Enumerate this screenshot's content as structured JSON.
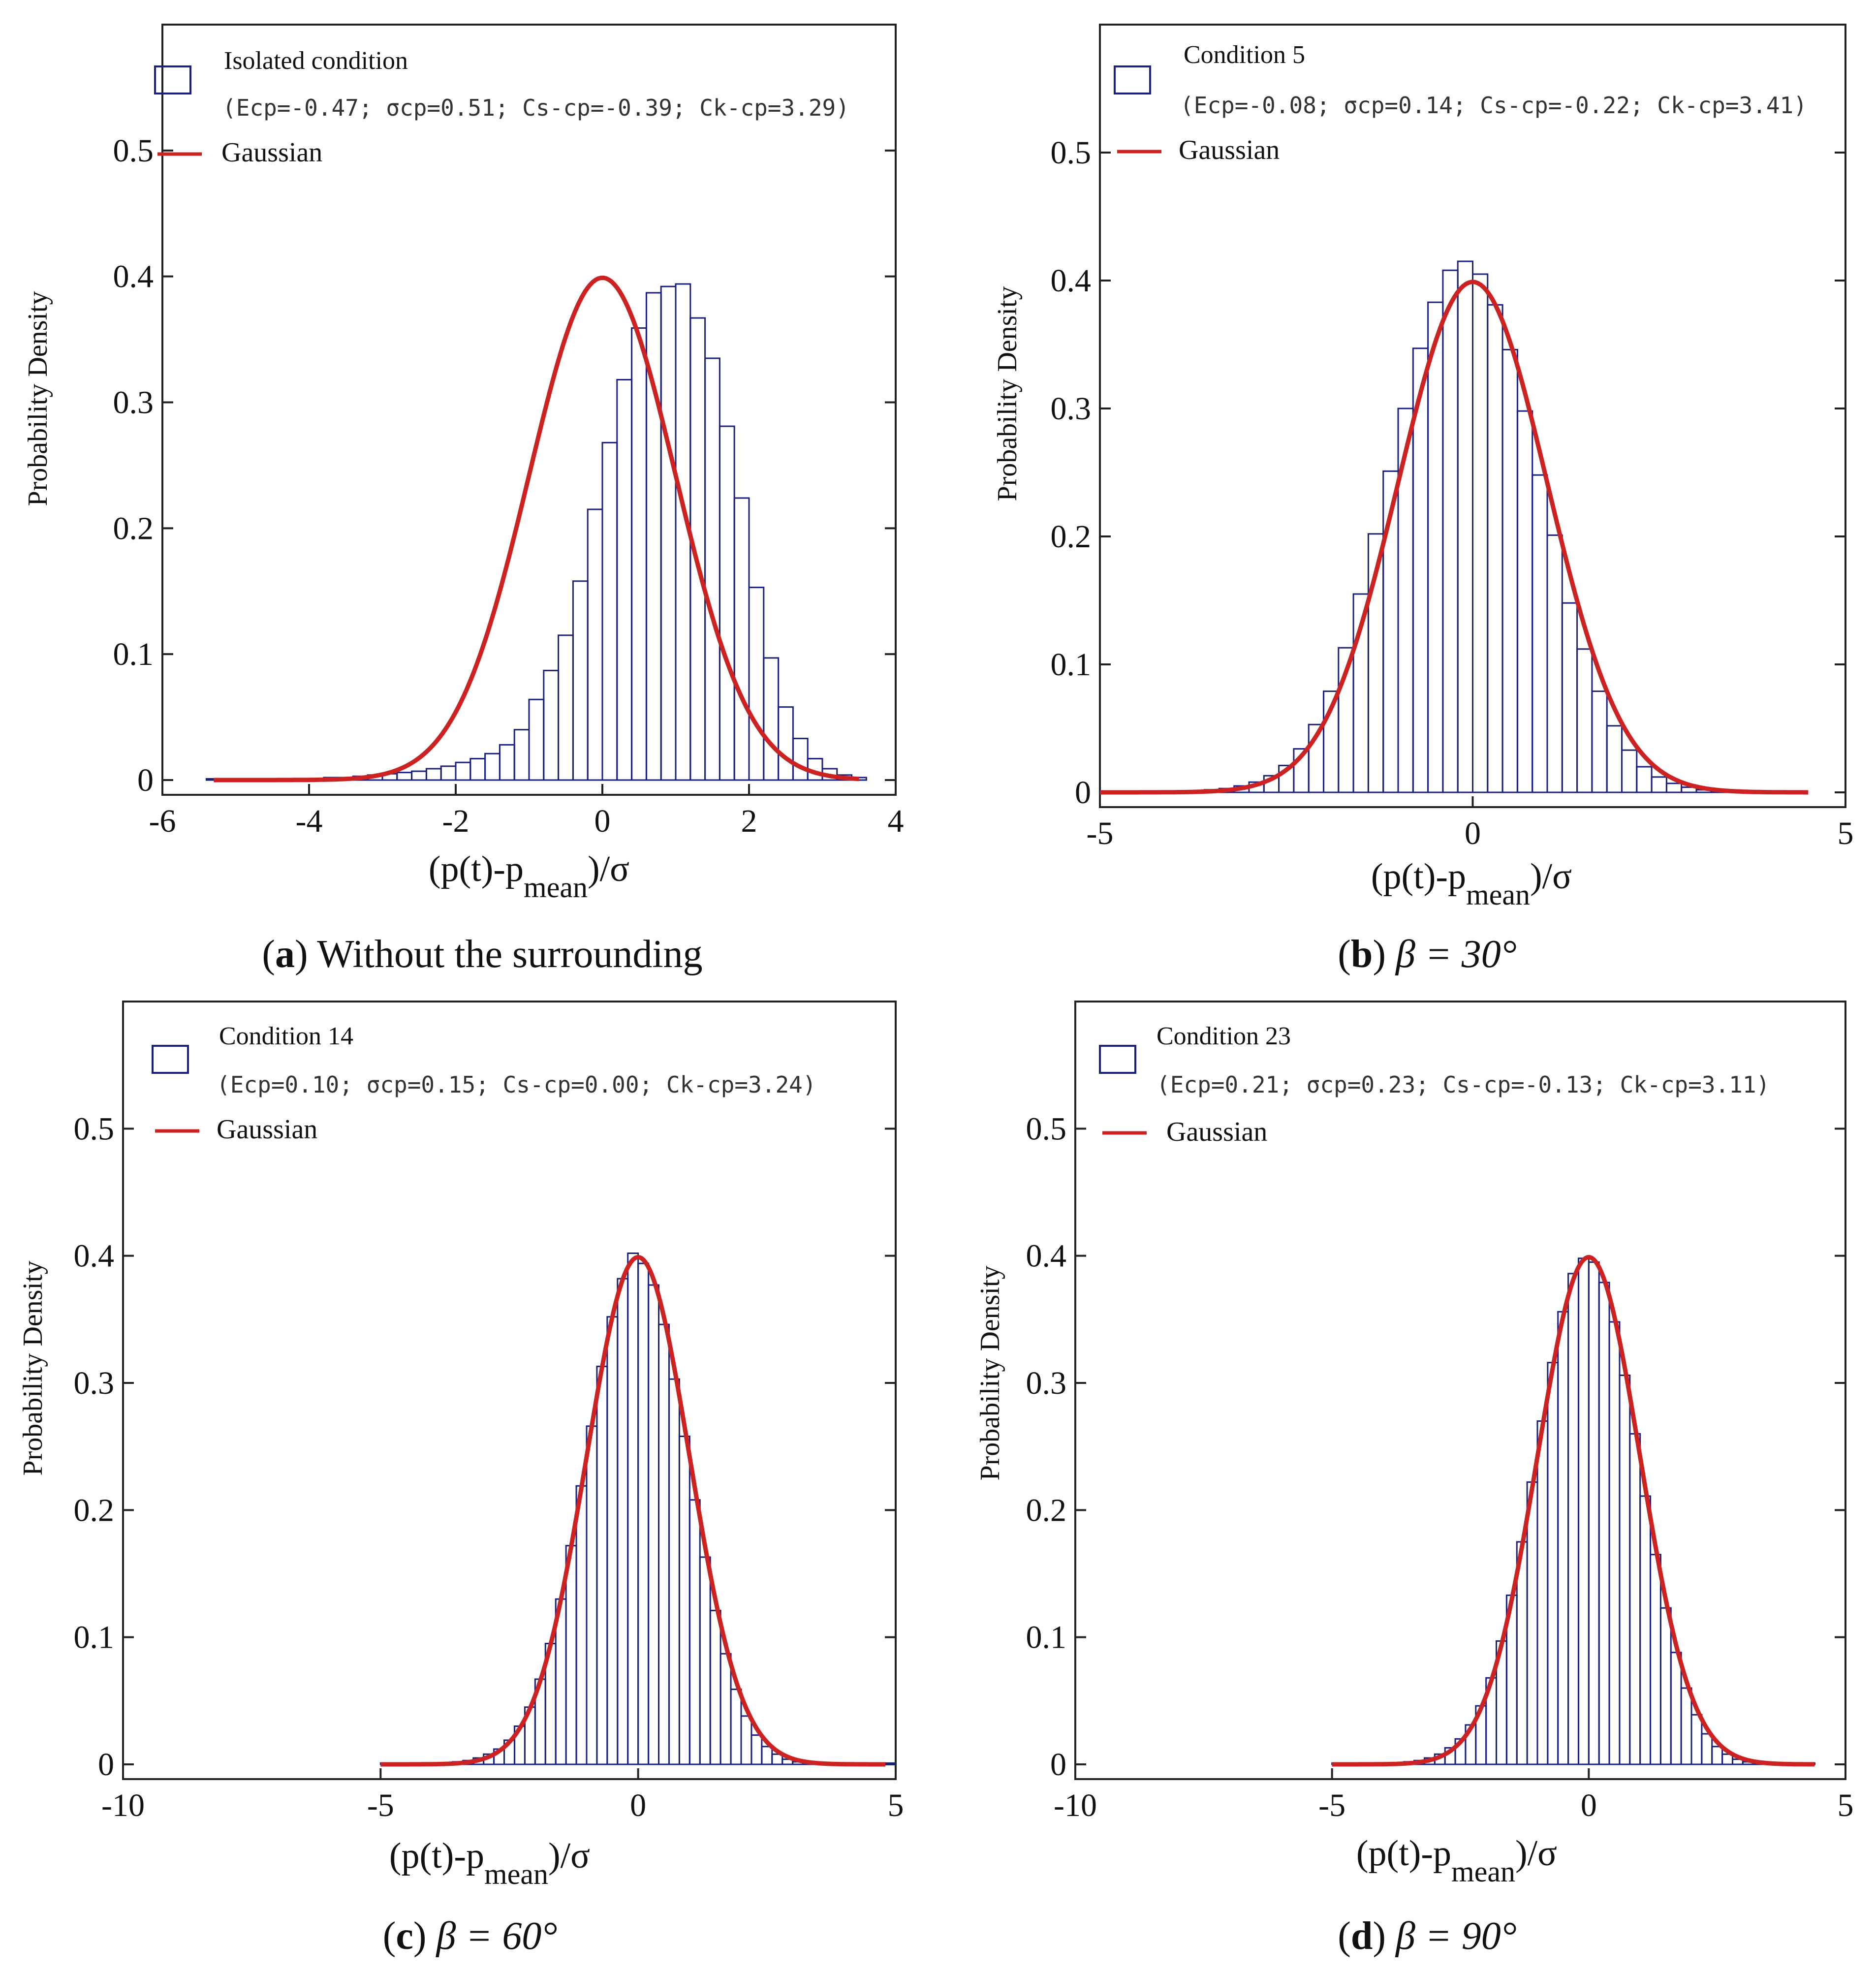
{
  "figure_captions": [
    {
      "letter": "a",
      "text": "Without the surrounding"
    },
    {
      "letter": "b",
      "text": "β = 30°"
    },
    {
      "letter": "c",
      "text": "β = 60°"
    },
    {
      "letter": "d",
      "text": "β = 90°"
    }
  ],
  "colors": {
    "bars": "#1a2080",
    "gaussian": "#cc2222",
    "axes": "#222222"
  },
  "chart_data": [
    {
      "type": "bar",
      "panel": "a",
      "xlabel": "(p(t)-p_mean)/σ",
      "ylabel": "Probability Density",
      "xlim": [
        -6,
        4
      ],
      "ylim": [
        0,
        0.6
      ],
      "xticks": [
        -6,
        -4,
        -2,
        0,
        2,
        4
      ],
      "yticks": [
        0,
        0.1,
        0.2,
        0.3,
        0.4,
        0.5
      ],
      "legend": {
        "title": "Isolated condition",
        "stats": "(Ecp=-0.47; σcp=0.51; Cs-cp=-0.39; Ck-cp=3.29)",
        "gaussian": "Gaussian"
      },
      "bin_width": 0.2,
      "bin_start": -5.4,
      "counts": [
        0.001,
        0.001,
        0.001,
        0.001,
        0.001,
        0.001,
        0.001,
        0.001,
        0.002,
        0.002,
        0.003,
        0.004,
        0.005,
        0.006,
        0.007,
        0.009,
        0.011,
        0.014,
        0.017,
        0.021,
        0.028,
        0.04,
        0.064,
        0.087,
        0.115,
        0.158,
        0.215,
        0.268,
        0.318,
        0.359,
        0.387,
        0.392,
        0.394,
        0.367,
        0.335,
        0.281,
        0.224,
        0.153,
        0.097,
        0.058,
        0.033,
        0.017,
        0.009,
        0.004,
        0.002
      ],
      "gaussian_range": [
        -5.3,
        3.5
      ]
    },
    {
      "type": "bar",
      "panel": "b",
      "xlabel": "(p(t)-p_mean)/σ",
      "ylabel": "Probability Density",
      "xlim": [
        -5,
        5
      ],
      "ylim": [
        0,
        0.6
      ],
      "xticks": [
        -5,
        0,
        5
      ],
      "yticks": [
        0,
        0.1,
        0.2,
        0.3,
        0.4,
        0.5
      ],
      "legend": {
        "title": "Condition 5",
        "stats": "(Ecp=-0.08; σcp=0.14; Cs-cp=-0.22; Ck-cp=3.41)",
        "gaussian": "Gaussian"
      },
      "bin_width": 0.2,
      "bin_start": -5.0,
      "counts": [
        0.001,
        0.001,
        0.001,
        0.001,
        0.001,
        0.001,
        0.001,
        0.002,
        0.003,
        0.005,
        0.008,
        0.013,
        0.021,
        0.034,
        0.053,
        0.079,
        0.113,
        0.155,
        0.202,
        0.251,
        0.3,
        0.347,
        0.383,
        0.408,
        0.415,
        0.405,
        0.381,
        0.346,
        0.298,
        0.248,
        0.201,
        0.148,
        0.112,
        0.079,
        0.052,
        0.033,
        0.02,
        0.012,
        0.007,
        0.004,
        0.002,
        0.001,
        0.001,
        0.001,
        0.001,
        0.001
      ],
      "gaussian_range": [
        -5.0,
        4.5
      ]
    },
    {
      "type": "bar",
      "panel": "c",
      "xlabel": "(p(t)-p_mean)/σ",
      "ylabel": "Probability Density",
      "xlim": [
        -10,
        5
      ],
      "ylim": [
        0,
        0.6
      ],
      "xticks": [
        -10,
        -5,
        0,
        5
      ],
      "yticks": [
        0,
        0.1,
        0.2,
        0.3,
        0.4,
        0.5
      ],
      "legend": {
        "title": "Condition 14",
        "stats": "(Ecp=0.10; σcp=0.15; Cs-cp=0.00; Ck-cp=3.24)",
        "gaussian": "Gaussian"
      },
      "bin_width": 0.2,
      "bin_start": -5.0,
      "counts": [
        0.001,
        0.001,
        0.001,
        0.001,
        0.001,
        0.001,
        0.001,
        0.002,
        0.003,
        0.005,
        0.008,
        0.012,
        0.019,
        0.03,
        0.045,
        0.067,
        0.095,
        0.13,
        0.172,
        0.219,
        0.266,
        0.313,
        0.352,
        0.382,
        0.402,
        0.394,
        0.377,
        0.346,
        0.303,
        0.258,
        0.208,
        0.163,
        0.121,
        0.087,
        0.059,
        0.038,
        0.023,
        0.014,
        0.008,
        0.004,
        0.002,
        0.001,
        0.001,
        0.001,
        0.001,
        0.001,
        0.001,
        0.001,
        0.001,
        0.001
      ],
      "gaussian_range": [
        -5.0,
        4.8
      ]
    },
    {
      "type": "bar",
      "panel": "d",
      "xlabel": "(p(t)-p_mean)/σ",
      "ylabel": "Probability Density",
      "xlim": [
        -10,
        5
      ],
      "ylim": [
        0,
        0.6
      ],
      "xticks": [
        -10,
        -5,
        0,
        5
      ],
      "yticks": [
        0,
        0.1,
        0.2,
        0.3,
        0.4,
        0.5
      ],
      "legend": {
        "title": "Condition 23",
        "stats": "(Ecp=0.21; σcp=0.23; Cs-cp=-0.13; Ck-cp=3.11)",
        "gaussian": "Gaussian"
      },
      "bin_width": 0.2,
      "bin_start": -5.0,
      "counts": [
        0.001,
        0.001,
        0.001,
        0.001,
        0.001,
        0.001,
        0.001,
        0.002,
        0.003,
        0.005,
        0.008,
        0.013,
        0.02,
        0.031,
        0.046,
        0.068,
        0.097,
        0.133,
        0.175,
        0.222,
        0.27,
        0.316,
        0.356,
        0.386,
        0.398,
        0.395,
        0.379,
        0.348,
        0.306,
        0.26,
        0.211,
        0.165,
        0.123,
        0.088,
        0.06,
        0.039,
        0.024,
        0.014,
        0.008,
        0.004,
        0.002,
        0.001,
        0.001,
        0.001,
        0.001,
        0.001,
        0.001
      ],
      "gaussian_range": [
        -5.0,
        4.4
      ]
    }
  ]
}
